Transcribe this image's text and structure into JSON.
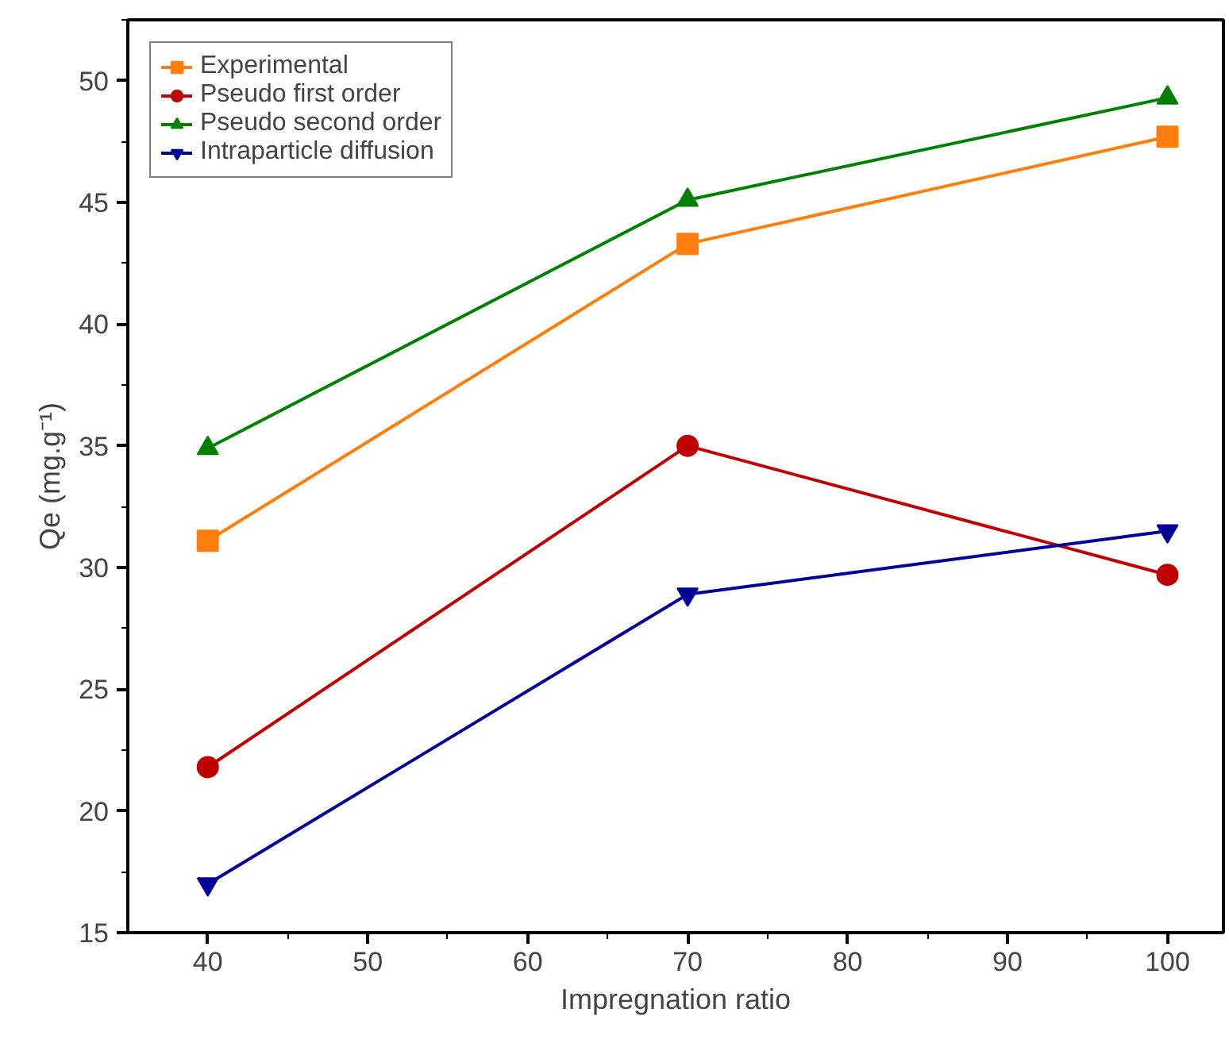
{
  "chart_data": {
    "type": "line",
    "xlabel": "Impregnation ratio",
    "ylabel": "Qe (mg.g⁻¹)",
    "x": [
      40,
      70,
      100
    ],
    "xlim": [
      35,
      103.5
    ],
    "xticks": [
      40,
      50,
      60,
      70,
      80,
      90,
      100
    ],
    "ylim": [
      15,
      52.5
    ],
    "yticks": [
      15,
      20,
      25,
      30,
      35,
      40,
      45,
      50
    ],
    "grid": false,
    "legend": "top left",
    "series": [
      {
        "name": "Experimental",
        "color": "#ff7f0e",
        "marker": "square",
        "values": [
          31.1,
          43.3,
          47.7
        ]
      },
      {
        "name": "Pseudo first order",
        "color": "#c00000",
        "marker": "circle",
        "values": [
          21.8,
          35.0,
          29.7
        ]
      },
      {
        "name": "Pseudo second order",
        "color": "#008000",
        "marker": "triangle",
        "values": [
          34.9,
          45.1,
          49.3
        ]
      },
      {
        "name": "Intraparticle diffusion",
        "color": "#000099",
        "marker": "triangle",
        "values": [
          17.0,
          28.9,
          31.5
        ]
      }
    ]
  }
}
